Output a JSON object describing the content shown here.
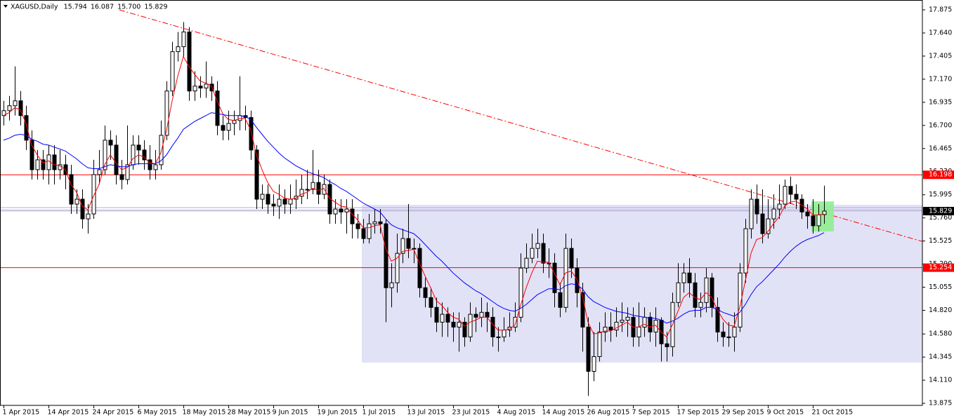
{
  "chart_data": {
    "type": "candlestick",
    "title": "XAGUSD,Daily",
    "legend_values": [
      "15.794",
      "16.087",
      "15.700",
      "15.829"
    ],
    "categories": [
      "1 Apr 2015",
      null,
      null,
      null,
      null,
      null,
      null,
      null,
      "14 Apr 2015",
      null,
      null,
      null,
      null,
      null,
      null,
      null,
      "24 Apr 2015",
      null,
      null,
      null,
      null,
      null,
      null,
      null,
      "6 May 2015",
      null,
      null,
      null,
      null,
      null,
      null,
      null,
      "18 May 2015",
      null,
      null,
      null,
      null,
      null,
      null,
      null,
      "28 May 2015",
      null,
      null,
      null,
      null,
      null,
      null,
      null,
      "9 Jun 2015",
      null,
      null,
      null,
      null,
      null,
      null,
      null,
      "19 Jun 2015",
      null,
      null,
      null,
      null,
      null,
      null,
      null,
      "1 Jul 2015",
      null,
      null,
      null,
      null,
      null,
      null,
      null,
      "13 Jul 2015",
      null,
      null,
      null,
      null,
      null,
      null,
      null,
      "23 Jul 2015",
      null,
      null,
      null,
      null,
      null,
      null,
      null,
      "4 Aug 2015",
      null,
      null,
      null,
      null,
      null,
      null,
      null,
      "14 Aug 2015",
      null,
      null,
      null,
      null,
      null,
      null,
      null,
      "26 Aug 2015",
      null,
      null,
      null,
      null,
      null,
      null,
      null,
      "7 Sep 2015",
      null,
      null,
      null,
      null,
      null,
      null,
      null,
      "17 Sep 2015",
      null,
      null,
      null,
      null,
      null,
      null,
      null,
      "29 Sep 2015",
      null,
      null,
      null,
      null,
      null,
      null,
      null,
      "9 Oct 2015",
      null,
      null,
      null,
      null,
      null,
      null,
      null,
      "21 Oct 2015",
      null,
      null
    ],
    "open": [
      16.8,
      16.85,
      16.9,
      16.95,
      16.8,
      16.55,
      16.25,
      16.35,
      16.25,
      16.4,
      16.25,
      16.3,
      16.2,
      15.9,
      15.95,
      15.75,
      15.8,
      16.2,
      16.25,
      16.55,
      16.5,
      16.2,
      16.15,
      16.3,
      16.5,
      16.45,
      16.35,
      16.25,
      16.3,
      16.6,
      17.05,
      17.45,
      17.5,
      17.65,
      17.05,
      17.1,
      17.08,
      17.12,
      17.05,
      16.7,
      16.65,
      16.72,
      16.75,
      16.8,
      16.78,
      16.45,
      15.95,
      16.0,
      15.9,
      15.88,
      15.95,
      15.9,
      15.95,
      15.98,
      16.05,
      16.05,
      16.12,
      16.0,
      16.1,
      15.8,
      15.85,
      15.82,
      15.85,
      15.7,
      15.65,
      15.55,
      15.7,
      15.72,
      15.7,
      15.05,
      15.1,
      15.4,
      15.55,
      15.45,
      15.45,
      15.05,
      14.95,
      14.85,
      14.7,
      14.78,
      14.7,
      14.65,
      14.7,
      14.55,
      14.78,
      14.75,
      14.8,
      14.75,
      14.55,
      14.55,
      14.62,
      14.65,
      14.75,
      15.25,
      15.35,
      15.45,
      15.5,
      15.3,
      15.3,
      15.0,
      14.85,
      15.45,
      15.25,
      15.0,
      14.65,
      14.2,
      14.35,
      14.6,
      14.65,
      14.62,
      14.7,
      14.72,
      14.75,
      14.55,
      14.65,
      14.75,
      14.6,
      14.72,
      14.48,
      14.45,
      14.9,
      15.1,
      15.2,
      15.1,
      14.85,
      14.9,
      15.15,
      14.85,
      14.6,
      14.55,
      14.55,
      14.65,
      15.2,
      15.65,
      15.95,
      15.8,
      15.6,
      15.75,
      15.85,
      15.9,
      16.08,
      16.0,
      15.95,
      15.82,
      15.78,
      15.68,
      15.794
    ],
    "high": [
      16.95,
      17.0,
      17.3,
      17.05,
      16.9,
      16.65,
      16.45,
      16.45,
      16.5,
      16.5,
      16.45,
      16.4,
      16.3,
      16.05,
      16.05,
      15.9,
      16.35,
      16.45,
      16.7,
      16.65,
      16.6,
      16.35,
      16.7,
      16.6,
      16.6,
      16.55,
      16.5,
      16.45,
      16.75,
      17.15,
      17.55,
      17.65,
      17.75,
      17.7,
      17.25,
      17.2,
      17.35,
      17.2,
      17.15,
      16.8,
      16.85,
      16.85,
      17.2,
      16.9,
      16.85,
      16.5,
      16.1,
      16.1,
      16.0,
      16.1,
      16.05,
      16.1,
      16.15,
      16.2,
      16.25,
      16.45,
      16.25,
      16.2,
      16.15,
      15.95,
      15.95,
      15.95,
      15.95,
      15.8,
      15.75,
      15.8,
      15.85,
      15.85,
      15.75,
      15.3,
      15.6,
      15.65,
      15.9,
      15.55,
      15.5,
      15.15,
      15.05,
      14.95,
      14.9,
      14.85,
      14.8,
      14.8,
      14.75,
      14.9,
      14.85,
      14.95,
      14.9,
      14.85,
      14.65,
      14.75,
      14.8,
      14.9,
      15.4,
      15.5,
      15.6,
      15.65,
      15.6,
      15.45,
      15.4,
      15.1,
      15.6,
      15.55,
      15.35,
      15.1,
      14.75,
      14.6,
      14.7,
      14.8,
      14.8,
      14.85,
      14.9,
      14.85,
      14.85,
      14.9,
      14.85,
      14.8,
      14.85,
      14.75,
      14.6,
      15.0,
      15.3,
      15.3,
      15.35,
      15.2,
      15.0,
      15.25,
      15.2,
      14.95,
      14.7,
      14.7,
      14.8,
      15.3,
      15.75,
      16.05,
      16.1,
      16.05,
      15.95,
      16.0,
      16.1,
      16.15,
      16.18,
      16.1,
      16.0,
      15.9,
      15.95,
      15.9,
      16.087
    ],
    "low": [
      16.7,
      16.75,
      16.8,
      16.7,
      16.45,
      16.15,
      16.15,
      16.15,
      16.1,
      16.1,
      16.15,
      16.05,
      15.8,
      15.8,
      15.65,
      15.6,
      15.75,
      16.1,
      16.2,
      16.35,
      16.1,
      16.05,
      16.1,
      16.25,
      16.3,
      16.25,
      16.15,
      16.15,
      16.25,
      16.55,
      17.0,
      17.35,
      17.4,
      16.95,
      16.95,
      16.98,
      16.98,
      16.95,
      16.6,
      16.55,
      16.55,
      16.6,
      16.65,
      16.65,
      16.35,
      15.85,
      15.85,
      15.8,
      15.78,
      15.75,
      15.8,
      15.8,
      15.85,
      15.9,
      15.95,
      16.0,
      15.9,
      15.95,
      15.7,
      15.7,
      15.7,
      15.6,
      15.55,
      15.55,
      15.5,
      15.5,
      15.6,
      15.6,
      14.7,
      14.85,
      15.0,
      15.3,
      15.35,
      15.3,
      14.95,
      14.85,
      14.75,
      14.6,
      14.55,
      14.55,
      14.5,
      14.4,
      14.45,
      14.5,
      14.6,
      14.65,
      14.6,
      14.45,
      14.4,
      14.5,
      14.55,
      14.6,
      14.7,
      15.2,
      15.3,
      15.35,
      15.2,
      15.15,
      14.85,
      14.75,
      14.8,
      15.15,
      14.85,
      14.4,
      13.95,
      14.1,
      14.3,
      14.5,
      14.5,
      14.55,
      14.6,
      14.55,
      14.45,
      14.45,
      14.55,
      14.5,
      14.45,
      14.3,
      14.3,
      14.35,
      14.85,
      15.0,
      14.95,
      14.75,
      14.75,
      14.8,
      14.75,
      14.5,
      14.45,
      14.45,
      14.4,
      14.6,
      15.1,
      15.55,
      15.7,
      15.5,
      15.55,
      15.65,
      15.75,
      15.85,
      15.9,
      15.85,
      15.75,
      15.65,
      15.6,
      15.62,
      15.7
    ],
    "close": [
      16.85,
      16.9,
      16.95,
      16.8,
      16.55,
      16.25,
      16.35,
      16.25,
      16.4,
      16.25,
      16.3,
      16.2,
      15.9,
      15.95,
      15.75,
      15.8,
      16.2,
      16.25,
      16.55,
      16.5,
      16.2,
      16.15,
      16.3,
      16.5,
      16.45,
      16.35,
      16.25,
      16.3,
      16.6,
      17.05,
      17.45,
      17.5,
      17.65,
      17.05,
      17.1,
      17.08,
      17.12,
      17.05,
      16.7,
      16.65,
      16.72,
      16.75,
      16.8,
      16.78,
      16.45,
      15.95,
      16.0,
      15.9,
      15.88,
      15.95,
      15.9,
      15.95,
      15.98,
      16.05,
      16.05,
      16.12,
      16.0,
      16.1,
      15.8,
      15.85,
      15.82,
      15.85,
      15.7,
      15.65,
      15.55,
      15.7,
      15.72,
      15.7,
      15.05,
      15.1,
      15.4,
      15.55,
      15.45,
      15.45,
      15.05,
      14.95,
      14.85,
      14.7,
      14.78,
      14.7,
      14.65,
      14.7,
      14.55,
      14.78,
      14.75,
      14.8,
      14.75,
      14.55,
      14.55,
      14.62,
      14.65,
      14.75,
      15.25,
      15.35,
      15.45,
      15.5,
      15.3,
      15.3,
      15.0,
      14.85,
      15.45,
      15.25,
      15.0,
      14.65,
      14.2,
      14.35,
      14.6,
      14.65,
      14.62,
      14.7,
      14.72,
      14.75,
      14.55,
      14.65,
      14.75,
      14.6,
      14.72,
      14.48,
      14.45,
      14.9,
      15.1,
      15.2,
      15.1,
      14.85,
      14.9,
      15.15,
      14.85,
      14.6,
      14.55,
      14.55,
      14.65,
      15.2,
      15.65,
      15.95,
      15.8,
      15.6,
      15.75,
      15.85,
      15.9,
      16.08,
      16.0,
      15.95,
      15.82,
      15.78,
      15.68,
      15.79,
      15.829
    ],
    "up_color": "#ffffff",
    "down_color": "#000000",
    "moving_averages": [
      {
        "color": "#ff0000",
        "values": [
          16.8,
          16.83,
          16.88,
          16.86,
          16.72,
          16.5,
          16.4,
          16.32,
          16.34,
          16.3,
          16.29,
          16.25,
          16.1,
          16.02,
          15.88,
          15.84,
          15.98,
          16.1,
          16.3,
          16.4,
          16.32,
          16.25,
          16.27,
          16.36,
          16.4,
          16.38,
          16.32,
          16.31,
          16.42,
          16.65,
          16.95,
          17.2,
          17.4,
          17.3,
          17.22,
          17.15,
          17.13,
          17.1,
          16.95,
          16.82,
          16.76,
          16.75,
          16.77,
          16.77,
          16.65,
          16.4,
          16.25,
          16.12,
          16.03,
          16.0,
          15.96,
          15.95,
          15.96,
          16.0,
          16.02,
          16.06,
          16.04,
          16.06,
          15.96,
          15.92,
          15.88,
          15.87,
          15.8,
          15.74,
          15.66,
          15.66,
          15.68,
          15.69,
          15.45,
          15.32,
          15.35,
          15.42,
          15.43,
          15.44,
          15.3,
          15.17,
          15.05,
          14.92,
          14.87,
          14.8,
          14.75,
          14.73,
          14.66,
          14.7,
          14.72,
          14.75,
          14.75,
          14.68,
          14.62,
          14.62,
          14.63,
          14.67,
          14.87,
          15.05,
          15.2,
          15.32,
          15.31,
          15.31,
          15.2,
          15.08,
          15.2,
          15.22,
          15.14,
          14.97,
          14.7,
          14.58,
          14.59,
          14.61,
          14.61,
          14.64,
          14.67,
          14.7,
          14.65,
          14.65,
          14.68,
          14.65,
          14.67,
          14.6,
          14.55,
          14.67,
          14.81,
          14.95,
          15.0,
          14.95,
          14.93,
          15.0,
          14.95,
          14.83,
          14.73,
          14.67,
          14.66,
          14.85,
          15.12,
          15.4,
          15.54,
          15.56,
          15.62,
          15.7,
          15.77,
          15.88,
          15.92,
          15.93,
          15.89,
          15.85,
          15.79,
          15.79,
          15.8
        ]
      },
      {
        "color": "#0000ff",
        "values": [
          16.55,
          16.57,
          16.6,
          16.61,
          16.6,
          16.56,
          16.54,
          16.51,
          16.5,
          16.48,
          16.46,
          16.44,
          16.4,
          16.36,
          16.31,
          16.27,
          16.26,
          16.26,
          16.28,
          16.3,
          16.29,
          16.28,
          16.28,
          16.3,
          16.31,
          16.31,
          16.31,
          16.31,
          16.34,
          16.4,
          16.49,
          16.57,
          16.66,
          16.7,
          16.74,
          16.77,
          16.8,
          16.83,
          16.82,
          16.81,
          16.8,
          16.8,
          16.8,
          16.79,
          16.76,
          16.68,
          16.61,
          16.54,
          16.48,
          16.42,
          16.37,
          16.33,
          16.29,
          16.26,
          16.23,
          16.21,
          16.19,
          16.17,
          16.13,
          16.1,
          16.06,
          16.03,
          15.99,
          15.95,
          15.91,
          15.88,
          15.85,
          15.82,
          15.75,
          15.69,
          15.66,
          15.64,
          15.62,
          15.6,
          15.55,
          15.49,
          15.43,
          15.37,
          15.32,
          15.26,
          15.2,
          15.15,
          15.1,
          15.06,
          15.02,
          14.99,
          14.95,
          14.91,
          14.87,
          14.84,
          14.82,
          14.81,
          14.84,
          14.88,
          14.93,
          14.98,
          15.01,
          15.04,
          15.04,
          15.03,
          15.07,
          15.09,
          15.08,
          15.04,
          14.96,
          14.91,
          14.88,
          14.85,
          14.83,
          14.81,
          14.8,
          14.79,
          14.77,
          14.76,
          14.75,
          14.74,
          14.74,
          14.72,
          14.69,
          14.71,
          14.74,
          14.78,
          14.81,
          14.82,
          14.82,
          14.85,
          14.85,
          14.83,
          14.8,
          14.78,
          14.76,
          14.8,
          14.88,
          14.98,
          15.06,
          15.11,
          15.17,
          15.23,
          15.29,
          15.36,
          15.42,
          15.47,
          15.51,
          15.54,
          15.56,
          15.58,
          15.61
        ]
      }
    ],
    "levels": [
      {
        "value": 16.198,
        "color": "#ff0000",
        "labeled": true
      },
      {
        "value": 15.254,
        "color": "#ff0000",
        "labeled": true
      },
      {
        "value": 15.865,
        "color": "#b4a8e8",
        "labeled": false
      },
      {
        "value": 15.84,
        "color": "#b4a8e8",
        "labeled": false
      }
    ],
    "trendline": {
      "x": [
        20.6,
        163.5
      ],
      "y": [
        17.875,
        15.52
      ],
      "color": "#ff0000"
    },
    "zone": {
      "x0": 63.75,
      "ylim": [
        14.289,
        15.893
      ],
      "color": "#e2e2f6"
    },
    "highlight": {
      "xlim": [
        143.75,
        147.75
      ],
      "ylim": [
        15.622,
        15.928
      ],
      "color": "#90ee90"
    },
    "xlim": [
      -0.625,
      163.5
    ],
    "ylim": [
      13.854,
      17.975
    ],
    "yticks": [
      17.875,
      {
        "value": 17.64,
        "label": "17.640"
      },
      17.405,
      {
        "value": 17.17,
        "label": "17.170"
      },
      16.935,
      {
        "value": 16.7,
        "label": "16.700"
      },
      16.465,
      {
        "value": 16.23,
        "label": "16.230"
      },
      15.995,
      {
        "value": 15.76,
        "label": "15.760"
      },
      15.525,
      {
        "value": 15.29,
        "label": "15.290"
      },
      15.055,
      {
        "value": 14.82,
        "label": "14.820"
      },
      {
        "value": 14.58,
        "label": "14.580"
      },
      14.345,
      {
        "value": 14.11,
        "label": "14.110"
      },
      13.875
    ],
    "grid": false
  }
}
